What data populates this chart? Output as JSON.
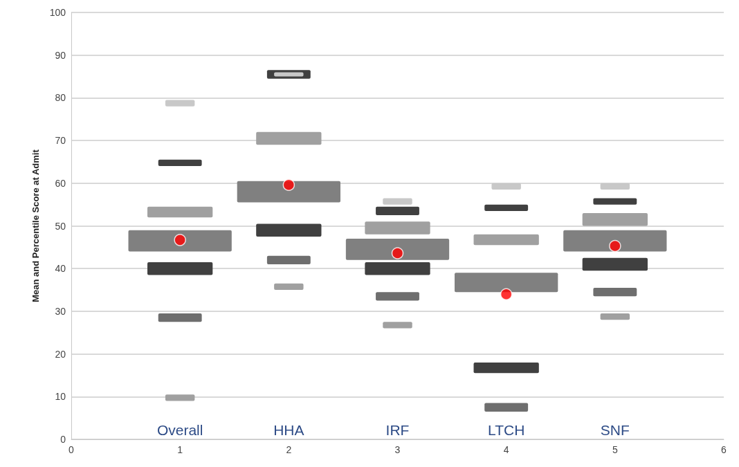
{
  "chart_data": {
    "type": "bar",
    "ylabel": "Mean and Percentile Score at Admit",
    "x": [
      1,
      2,
      3,
      4,
      5
    ],
    "xlim": [
      0,
      6
    ],
    "xticks": [
      0,
      1,
      2,
      3,
      4,
      5,
      6
    ],
    "ylim": [
      0,
      100
    ],
    "yticks": [
      0,
      10,
      20,
      30,
      40,
      50,
      60,
      70,
      80,
      90,
      100
    ],
    "grid": "y",
    "series": [
      {
        "color": "#808080",
        "base": [
          44,
          55.5,
          42,
          34.5,
          44
        ],
        "values": [
          5,
          5,
          5,
          4.5,
          5
        ]
      },
      {
        "color": "#404040",
        "base": [
          38.5,
          47.5,
          38.5,
          15.5,
          39.5
        ],
        "values": [
          3,
          3,
          3,
          2.5,
          3
        ]
      },
      {
        "color": "#a0a0a0",
        "base": [
          52,
          69,
          48,
          45.5,
          50
        ],
        "values": [
          2.5,
          3,
          3,
          2.5,
          3
        ]
      },
      {
        "color": "#6e6e6e",
        "base": [
          27.5,
          41,
          32.5,
          6.5,
          33.5
        ],
        "values": [
          2,
          2,
          2,
          2,
          2
        ]
      },
      {
        "color": "#404040",
        "base": [
          64,
          84.5,
          52.5,
          53.5,
          55
        ],
        "values": [
          1.5,
          2,
          2,
          1.5,
          1.5
        ]
      },
      {
        "color": "#a0a0a0",
        "base": [
          9,
          35,
          26,
          null,
          28
        ],
        "values": [
          1.5,
          1.5,
          1.5,
          null,
          1.5
        ]
      },
      {
        "color": "#c8c8c8",
        "base": [
          78,
          85,
          55,
          58.5,
          58.5
        ],
        "values": [
          1.5,
          1,
          1.5,
          1.5,
          1.5
        ]
      },
      {
        "type": "scatter",
        "color": "#ff0000",
        "marker": "circle",
        "values": [
          46.7,
          59.6,
          43.6,
          34,
          45.3
        ]
      }
    ],
    "annotations": [
      "Overall",
      "HHA",
      "IRF",
      "LTCH",
      "SNF"
    ]
  }
}
